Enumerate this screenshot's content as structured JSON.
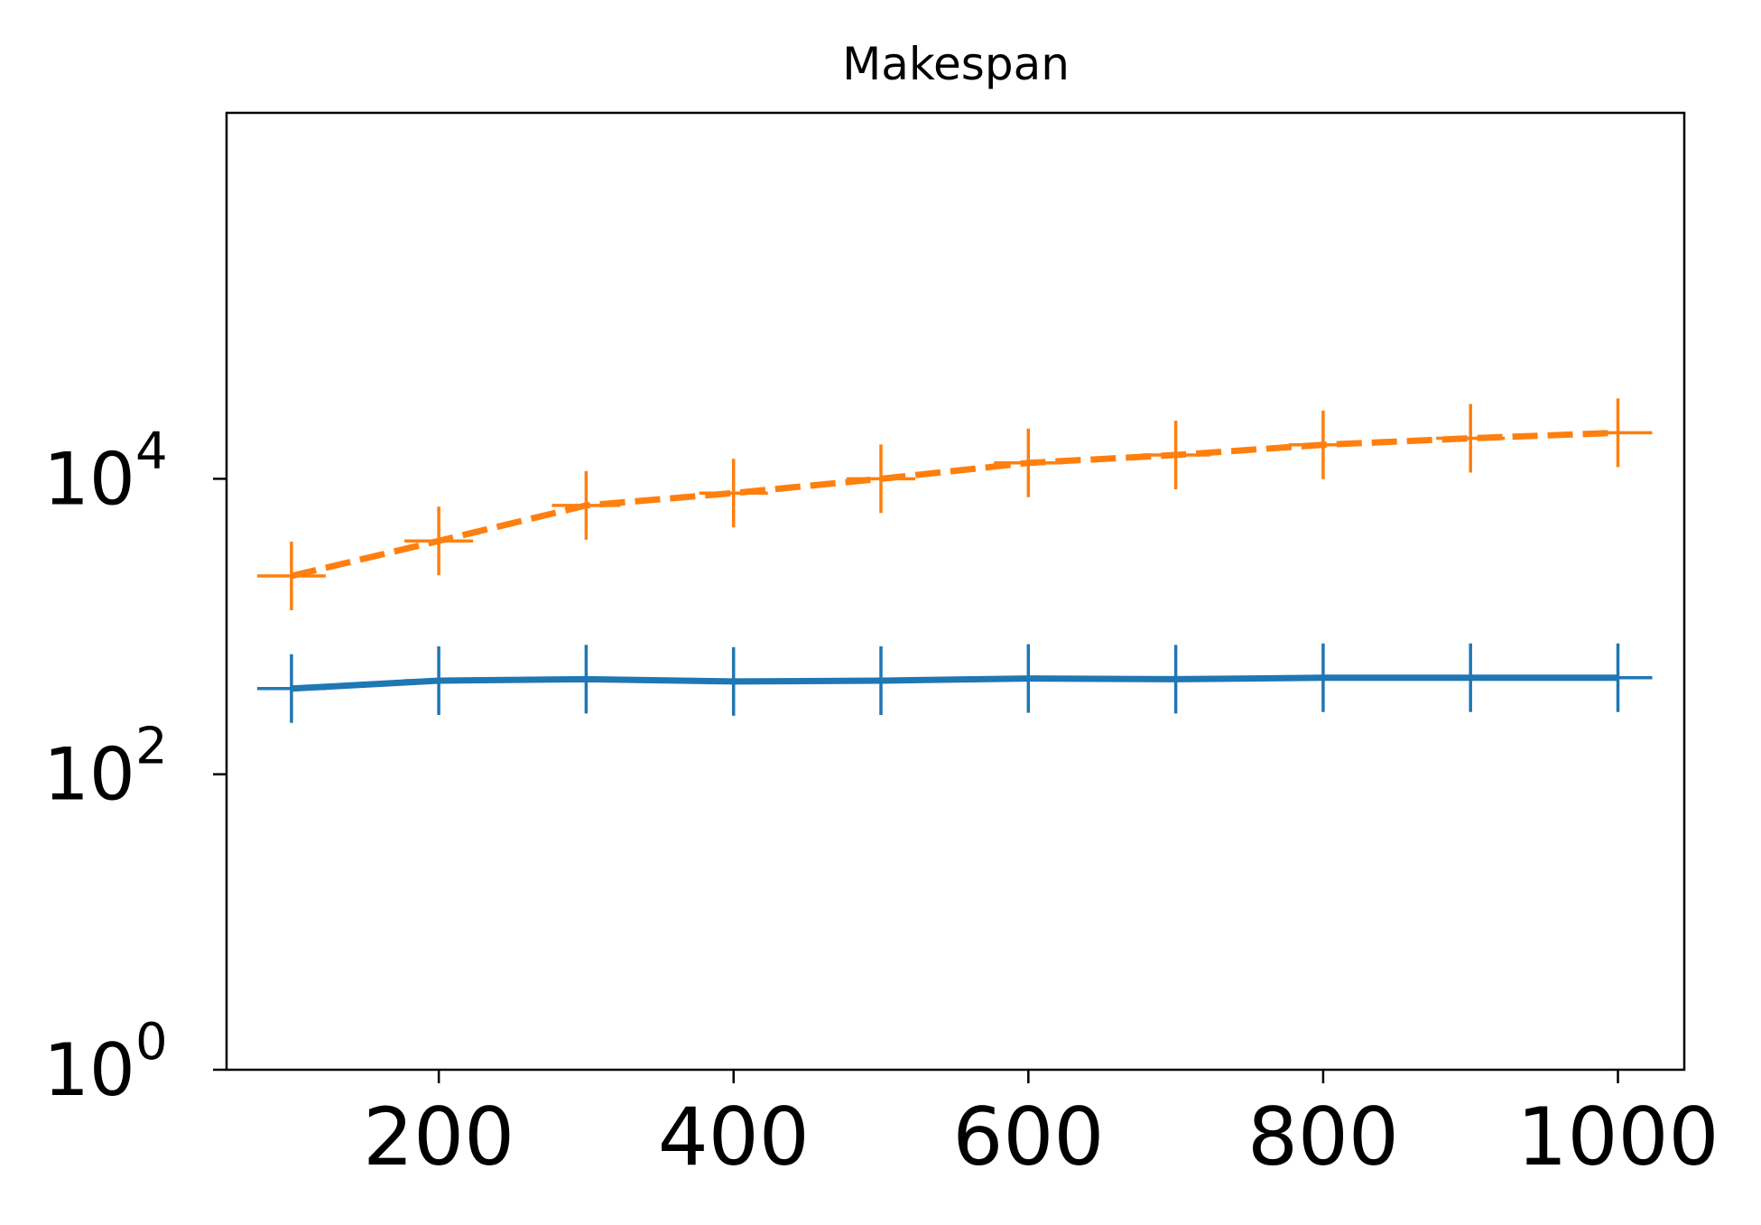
{
  "chart_data": {
    "type": "line",
    "title": "Makespan",
    "xlabel": "",
    "ylabel": "",
    "x": [
      100,
      200,
      300,
      400,
      500,
      600,
      700,
      800,
      900,
      1000
    ],
    "xlim": [
      56,
      1045
    ],
    "ylim": [
      1,
      3000000
    ],
    "yscale": "log",
    "x_ticks": [
      {
        "value": 200,
        "label": "200"
      },
      {
        "value": 400,
        "label": "400"
      },
      {
        "value": 600,
        "label": "600"
      },
      {
        "value": 800,
        "label": "800"
      },
      {
        "value": 1000,
        "label": "1000"
      }
    ],
    "y_ticks": [
      {
        "value": 1,
        "base": "10",
        "exp": "0"
      },
      {
        "value": 100,
        "base": "10",
        "exp": "2"
      },
      {
        "value": 10000,
        "base": "10",
        "exp": "4"
      }
    ],
    "grid": false,
    "series": [
      {
        "color": "#1f77b4",
        "style": "solid",
        "marker": "plus",
        "values": [
          380,
          430,
          440,
          425,
          430,
          445,
          440,
          450,
          450,
          450
        ]
      },
      {
        "color": "#ff7f0e",
        "style": "dashed",
        "marker": "plus",
        "values": [
          2200,
          3800,
          6600,
          8000,
          10000,
          12800,
          14500,
          17000,
          18800,
          20500
        ]
      }
    ]
  }
}
